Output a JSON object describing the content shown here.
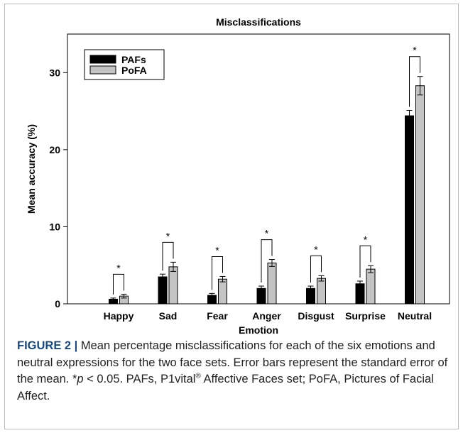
{
  "caption": {
    "label": "FIGURE 2 |",
    "text_1": " Mean percentage misclassifications for each of the six emotions and neutral expressions for the two face sets. Error bars represent the standard error of the mean. *",
    "p_symbol": "p",
    "text_2": " < 0.05. PAFs, P1vital",
    "registered": "®",
    "text_3": " Affective Faces set; PoFA, Pictures of Facial Affect."
  },
  "chart_data": {
    "type": "bar",
    "title": "Misclassifications",
    "xlabel": "Emotion",
    "ylabel": "Mean accuracy (%)",
    "ylim": [
      0,
      35
    ],
    "yticks": [
      0,
      10,
      20,
      30
    ],
    "categories": [
      "Happy",
      "Sad",
      "Fear",
      "Anger",
      "Disgust",
      "Surprise",
      "Neutral"
    ],
    "series": [
      {
        "name": "PAFs",
        "color": "#000000",
        "values": [
          0.6,
          3.5,
          1.1,
          2.0,
          2.0,
          2.6,
          24.4
        ],
        "errors": [
          0.15,
          0.35,
          0.25,
          0.3,
          0.3,
          0.35,
          0.7
        ]
      },
      {
        "name": "PoFA",
        "color": "#c4c4c4",
        "values": [
          1.0,
          4.8,
          3.2,
          5.3,
          3.3,
          4.5,
          28.3
        ],
        "errors": [
          0.25,
          0.6,
          0.35,
          0.45,
          0.35,
          0.45,
          1.2
        ]
      }
    ],
    "significance": [
      "*",
      "*",
      "*",
      "*",
      "*",
      "*",
      "*"
    ],
    "legend_position": "top-left",
    "grid": false
  }
}
